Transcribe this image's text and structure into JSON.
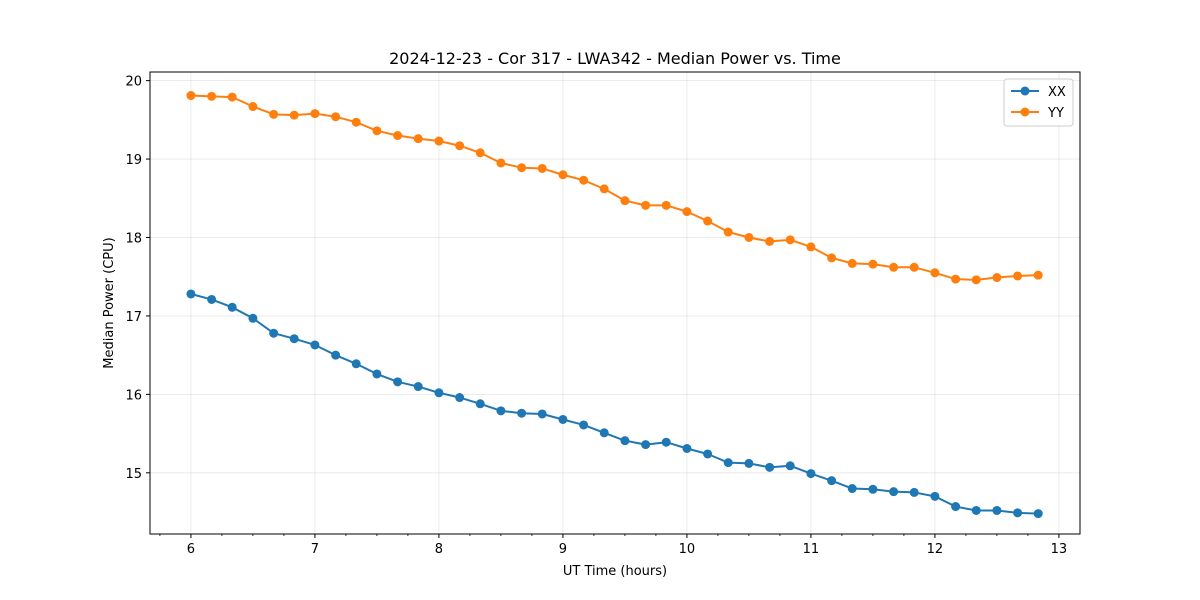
{
  "chart_data": {
    "type": "line",
    "title": "2024-12-23 - Cor 317 - LWA342 - Median Power vs. Time",
    "xlabel": "UT Time (hours)",
    "ylabel": "Median Power (CPU)",
    "xlim": [
      5.67,
      13.17
    ],
    "ylim": [
      14.22,
      20.11
    ],
    "xticks": [
      6,
      7,
      8,
      9,
      10,
      11,
      12,
      13
    ],
    "yticks": [
      15,
      16,
      17,
      18,
      19,
      20
    ],
    "grid": true,
    "legend_position": "top-right",
    "x": [
      6.0,
      6.167,
      6.333,
      6.5,
      6.667,
      6.833,
      7.0,
      7.167,
      7.333,
      7.5,
      7.667,
      7.833,
      8.0,
      8.167,
      8.333,
      8.5,
      8.667,
      8.833,
      9.0,
      9.167,
      9.333,
      9.5,
      9.667,
      9.833,
      10.0,
      10.167,
      10.333,
      10.5,
      10.667,
      10.833,
      11.0,
      11.167,
      11.333,
      11.5,
      11.667,
      11.833,
      12.0,
      12.167,
      12.333,
      12.5,
      12.667,
      12.833
    ],
    "series": [
      {
        "name": "XX",
        "color": "#1f77b4",
        "values": [
          17.28,
          17.21,
          17.11,
          16.97,
          16.78,
          16.71,
          16.63,
          16.5,
          16.39,
          16.26,
          16.16,
          16.1,
          16.02,
          15.96,
          15.88,
          15.79,
          15.76,
          15.75,
          15.68,
          15.61,
          15.51,
          15.41,
          15.36,
          15.39,
          15.31,
          15.24,
          15.13,
          15.12,
          15.07,
          15.09,
          14.99,
          14.9,
          14.8,
          14.79,
          14.76,
          14.75,
          14.7,
          14.57,
          14.52,
          14.52,
          14.49,
          14.48
        ]
      },
      {
        "name": "YY",
        "color": "#ff7f0e",
        "values": [
          19.81,
          19.8,
          19.79,
          19.67,
          19.57,
          19.56,
          19.58,
          19.54,
          19.47,
          19.36,
          19.3,
          19.26,
          19.23,
          19.17,
          19.08,
          18.95,
          18.89,
          18.88,
          18.8,
          18.73,
          18.62,
          18.47,
          18.41,
          18.41,
          18.33,
          18.21,
          18.07,
          18.0,
          17.95,
          17.97,
          17.88,
          17.74,
          17.67,
          17.66,
          17.62,
          17.62,
          17.55,
          17.47,
          17.46,
          17.49,
          17.51,
          17.52
        ]
      }
    ]
  }
}
